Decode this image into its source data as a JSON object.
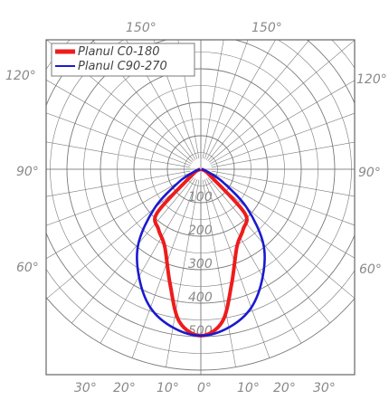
{
  "chart_data": {
    "type": "polar",
    "unit_note": "",
    "series": [
      {
        "name": "Planul C0-180",
        "color": "#ee1c1c",
        "angles_deg": [
          -90,
          -70,
          -55,
          -45,
          -35,
          -25,
          -15,
          -8,
          0,
          8,
          15,
          25,
          35,
          45,
          55,
          70,
          90
        ],
        "values": [
          2,
          8,
          35,
          185,
          220,
          255,
          355,
          460,
          497,
          460,
          355,
          255,
          220,
          185,
          35,
          8,
          2
        ]
      },
      {
        "name": "Planul C90-270",
        "color": "#1a1ad0",
        "angles_deg": [
          -90,
          -70,
          -60,
          -50,
          -40,
          -30,
          -20,
          -10,
          0,
          10,
          20,
          30,
          40,
          50,
          60,
          70,
          90
        ],
        "values": [
          2,
          20,
          75,
          180,
          290,
          370,
          440,
          480,
          497,
          480,
          440,
          370,
          290,
          180,
          75,
          20,
          2
        ]
      }
    ],
    "radial_ticks": [
      "100",
      "200",
      "300",
      "400",
      "500"
    ],
    "angle_labels": {
      "top": [
        "150°",
        "150°"
      ],
      "upper_side": [
        "120°",
        "120°"
      ],
      "middle_side": [
        "90°",
        "90°"
      ],
      "lower_side": [
        "60°",
        "60°"
      ],
      "bottom": [
        "30°",
        "20°",
        "10°",
        "0°",
        "10°",
        "20°",
        "30°"
      ]
    },
    "rmax": 600,
    "grid": true
  },
  "colors": {
    "grid": "#7a7a7a",
    "frame": "#666666",
    "text": "#8a8a8a"
  }
}
